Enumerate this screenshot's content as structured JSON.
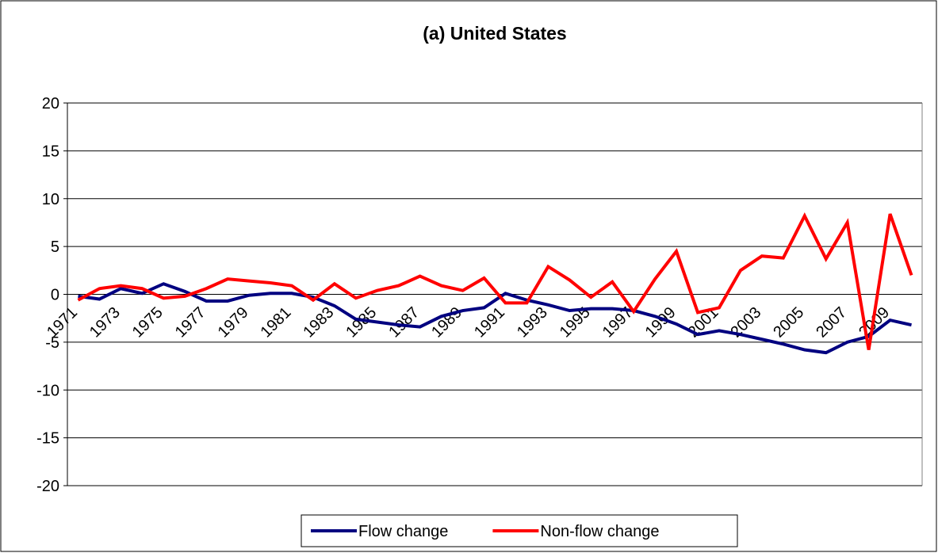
{
  "chart_data": {
    "type": "line",
    "title": "(a)  United States",
    "categories": [
      "1971",
      null,
      "1973",
      null,
      "1975",
      null,
      "1977",
      null,
      "1979",
      null,
      "1981",
      null,
      "1983",
      null,
      "1985",
      null,
      "1987",
      null,
      "1989",
      null,
      "1991",
      null,
      "1993",
      null,
      "1995",
      null,
      "1997",
      null,
      "1999",
      null,
      "2001",
      null,
      "2003",
      null,
      "2005",
      null,
      "2007",
      null,
      "2009",
      null
    ],
    "series": [
      {
        "name": "Flow change",
        "color": "#000080",
        "values": [
          -0.2,
          -0.5,
          0.6,
          0.1,
          1.1,
          0.3,
          -0.7,
          -0.7,
          -0.1,
          0.1,
          0.1,
          -0.3,
          -1.2,
          -2.6,
          -2.9,
          -3.2,
          -3.4,
          -2.3,
          -1.7,
          -1.4,
          0.1,
          -0.6,
          -1.1,
          -1.7,
          -1.5,
          -1.5,
          -1.7,
          -2.3,
          -3.1,
          -4.2,
          -3.8,
          -4.2,
          -4.7,
          -5.2,
          -5.8,
          -6.1,
          -5.0,
          -4.4,
          -2.7,
          -3.2
        ]
      },
      {
        "name": "Non-flow change",
        "color": "#ff0000",
        "values": [
          -0.6,
          0.6,
          0.9,
          0.6,
          -0.4,
          -0.2,
          0.6,
          1.6,
          1.4,
          1.2,
          0.9,
          -0.6,
          1.1,
          -0.4,
          0.4,
          0.9,
          1.9,
          0.9,
          0.4,
          1.7,
          -0.9,
          -0.9,
          2.9,
          1.5,
          -0.3,
          1.3,
          -1.8,
          1.6,
          4.5,
          -1.9,
          -1.4,
          2.5,
          4.0,
          3.8,
          8.2,
          3.7,
          7.5,
          -5.8,
          8.4,
          2.0
        ]
      }
    ],
    "ylim": [
      -20,
      20
    ],
    "yticks": [
      -20,
      -15,
      -10,
      -5,
      0,
      5,
      10,
      15,
      20
    ],
    "grid": true,
    "legend": "bottom"
  }
}
